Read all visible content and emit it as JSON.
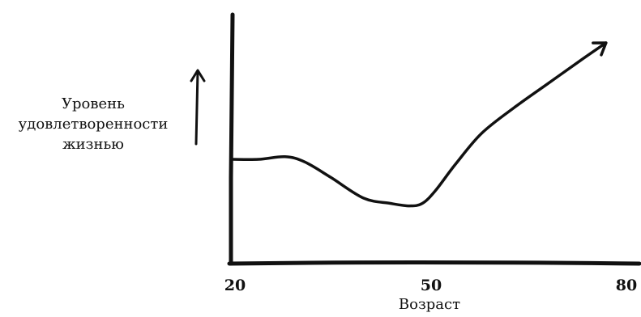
{
  "chart_data": {
    "type": "line",
    "title": "",
    "ylabel_lines": [
      "Уровень",
      "удовлетворенности",
      "жизнью"
    ],
    "xlabel": "Возраст",
    "x_ticks": [
      20,
      50,
      80
    ],
    "xlim": [
      20,
      80
    ],
    "ylim": [
      0,
      10
    ],
    "grid": false,
    "legend": "none",
    "y_ticks_shown": false,
    "series": [
      {
        "x": [
          20,
          24,
          28,
          31,
          35,
          40,
          44,
          47,
          49,
          51,
          54,
          58,
          63,
          68,
          73,
          77
        ],
        "y": [
          4.0,
          4.0,
          4.1,
          3.9,
          3.3,
          2.5,
          2.3,
          2.2,
          2.3,
          2.8,
          3.8,
          5.0,
          6.0,
          6.9,
          7.8,
          8.5
        ]
      }
    ],
    "line_color": "#111111"
  }
}
